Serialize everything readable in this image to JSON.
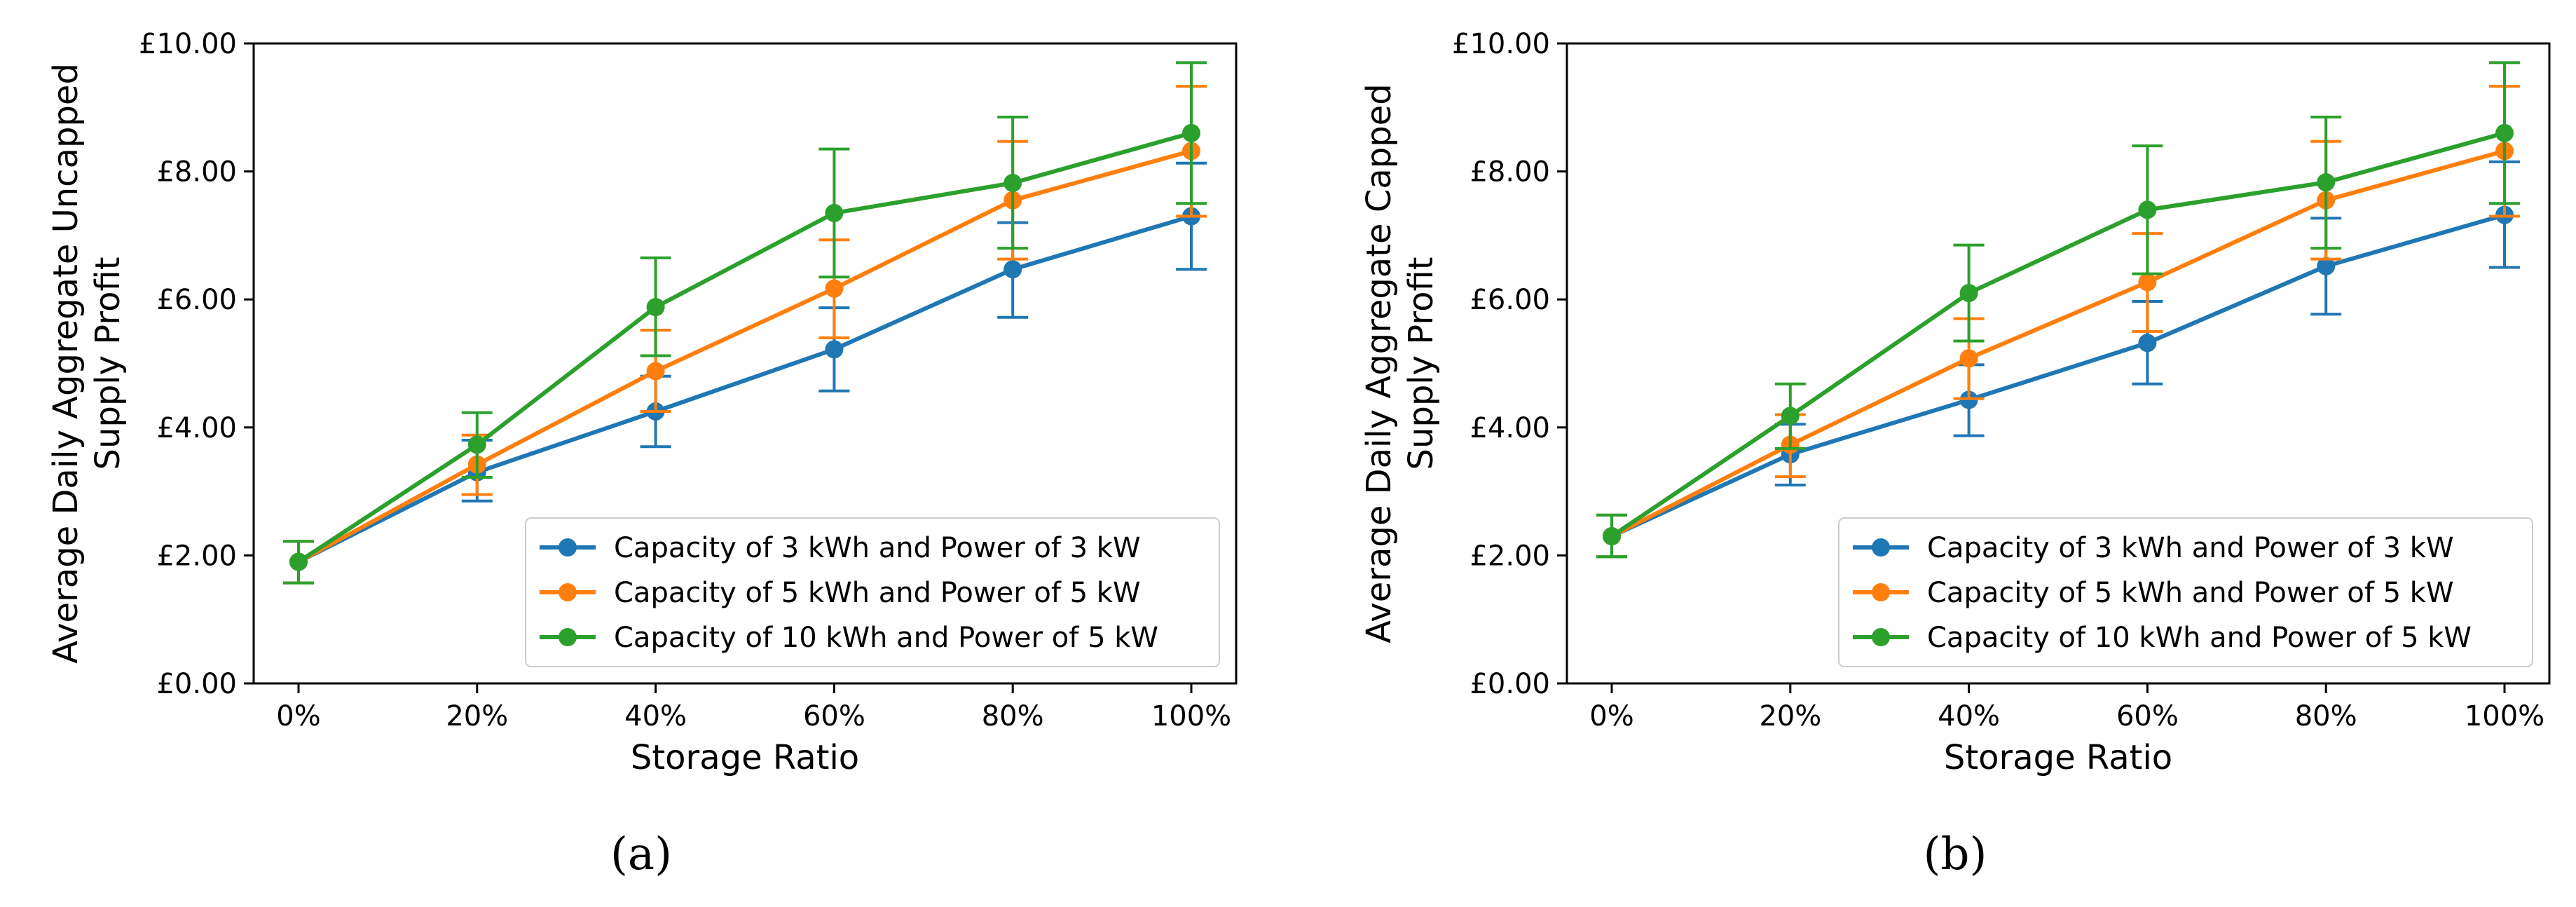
{
  "chart_data": [
    {
      "type": "line",
      "panel_label": "(a)",
      "title": "",
      "xlabel": "Storage Ratio",
      "ylabel_lines": [
        "Average Daily Aggregate Uncapped",
        "Supply Profit"
      ],
      "categories": [
        "0%",
        "20%",
        "40%",
        "60%",
        "80%",
        "100%"
      ],
      "ylim": [
        0,
        10
      ],
      "yticks": [
        "£0.00",
        "£2.00",
        "£4.00",
        "£6.00",
        "£8.00",
        "£10.00"
      ],
      "legend_position": "lower-right",
      "series": [
        {
          "name": "Capacity of 3 kWh and Power of 3 kW",
          "color": "#1f77b4",
          "values": [
            1.9,
            3.3,
            4.25,
            5.22,
            6.47,
            7.3
          ],
          "err_low": [
            1.57,
            2.85,
            3.7,
            4.57,
            5.72,
            6.47
          ],
          "err_high": [
            2.22,
            3.8,
            4.8,
            5.87,
            7.2,
            8.13
          ]
        },
        {
          "name": "Capacity of 5 kWh and Power of 5 kW",
          "color": "#ff7f0e",
          "values": [
            1.9,
            3.42,
            4.88,
            6.17,
            7.55,
            8.32
          ],
          "err_low": [
            1.57,
            2.95,
            4.25,
            5.4,
            6.63,
            7.3
          ],
          "err_high": [
            2.22,
            3.88,
            5.52,
            6.93,
            8.47,
            9.33
          ]
        },
        {
          "name": "Capacity of 10 kWh and Power of 5 kW",
          "color": "#2ca02c",
          "values": [
            1.9,
            3.73,
            5.88,
            7.35,
            7.82,
            8.6
          ],
          "err_low": [
            1.57,
            3.22,
            5.12,
            6.35,
            6.8,
            7.5
          ],
          "err_high": [
            2.22,
            4.23,
            6.65,
            8.35,
            8.85,
            9.7
          ]
        }
      ]
    },
    {
      "type": "line",
      "panel_label": "(b)",
      "title": "",
      "xlabel": "Storage Ratio",
      "ylabel_lines": [
        "Average Daily Aggregate Capped",
        "Supply Profit"
      ],
      "categories": [
        "0%",
        "20%",
        "40%",
        "60%",
        "80%",
        "100%"
      ],
      "ylim": [
        0,
        10
      ],
      "yticks": [
        "£0.00",
        "£2.00",
        "£4.00",
        "£6.00",
        "£8.00",
        "£10.00"
      ],
      "legend_position": "lower-right",
      "series": [
        {
          "name": "Capacity of 3 kWh and Power of 3 kW",
          "color": "#1f77b4",
          "values": [
            2.3,
            3.58,
            4.43,
            5.32,
            6.52,
            7.32
          ],
          "err_low": [
            1.98,
            3.1,
            3.87,
            4.68,
            5.77,
            6.5
          ],
          "err_high": [
            2.63,
            4.05,
            4.98,
            5.97,
            7.27,
            8.15
          ]
        },
        {
          "name": "Capacity of 5 kWh and Power of 5 kW",
          "color": "#ff7f0e",
          "values": [
            2.3,
            3.73,
            5.08,
            6.27,
            7.55,
            8.32
          ],
          "err_low": [
            1.98,
            3.23,
            4.45,
            5.5,
            6.63,
            7.3
          ],
          "err_high": [
            2.63,
            4.2,
            5.7,
            7.03,
            8.47,
            9.33
          ]
        },
        {
          "name": "Capacity of 10 kWh and Power of 5 kW",
          "color": "#2ca02c",
          "values": [
            2.3,
            4.18,
            6.1,
            7.4,
            7.83,
            8.6
          ],
          "err_low": [
            1.98,
            3.67,
            5.35,
            6.4,
            6.8,
            7.5
          ],
          "err_high": [
            2.63,
            4.68,
            6.85,
            8.4,
            8.85,
            9.7
          ]
        }
      ]
    }
  ]
}
